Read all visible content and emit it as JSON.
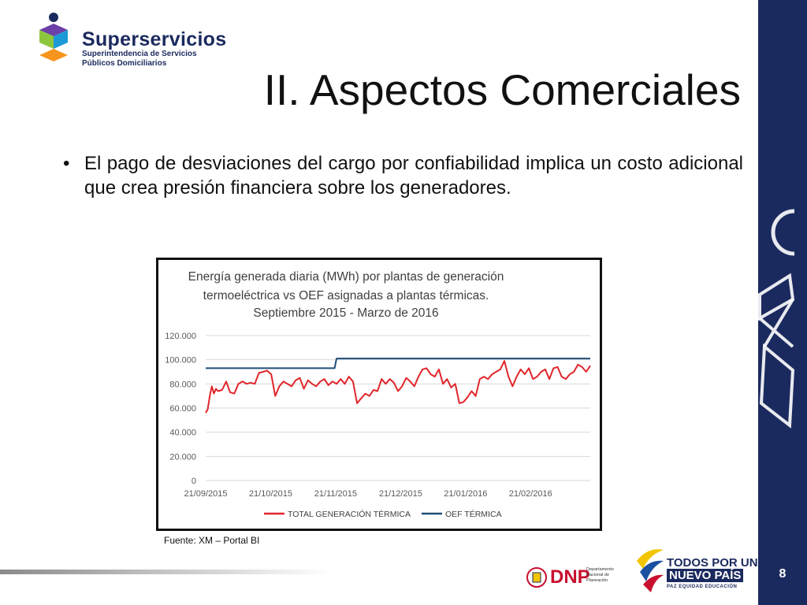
{
  "logo": {
    "name": "Superservicios",
    "subtitle_line1": "Superintendencia de Servicios",
    "subtitle_line2": "Públicos Domiciliarios"
  },
  "slide": {
    "title": "II. Aspectos Comerciales",
    "bullet_symbol": "•",
    "bullet_text": "El pago de desviaciones del cargo por confiabilidad implica un costo adicional que crea presión financiera sobre los generadores.",
    "source": "Fuente: XM – Portal BI",
    "page_number": "8"
  },
  "footer": {
    "dnp_text": "DNP",
    "dnp_sub": "Departamento Nacional de Planeación",
    "tpnp_line1": "TODOS POR UN",
    "tpnp_line2": "NUEVO PAÍS",
    "tpnp_line3": "PAZ  EQUIDAD  EDUCACIÓN"
  },
  "colors": {
    "sidebar": "#1b2a5e",
    "generation_series": "#e0262b",
    "oef_series": "#1f4e79",
    "gridline": "#d9d9d9"
  },
  "chart_data": {
    "type": "line",
    "title_lines": [
      "Energía generada diaria (MWh) por plantas de generación",
      "termoeléctrica vs OEF asignadas a plantas térmicas.",
      "Septiembre 2015 - Marzo de 2016"
    ],
    "x_tick_labels": [
      "21/09/2015",
      "21/10/2015",
      "21/11/2015",
      "21/12/2015",
      "21/01/2016",
      "21/02/2016"
    ],
    "x_range_days": [
      0,
      188
    ],
    "ylim": [
      0,
      120000
    ],
    "y_tick_labels": [
      "0",
      "20.000",
      "40.000",
      "60.000",
      "80.000",
      "100.000",
      "120.000"
    ],
    "y_ticks": [
      0,
      20000,
      40000,
      60000,
      80000,
      100000,
      120000
    ],
    "grid": true,
    "legend_position": "bottom",
    "series": [
      {
        "name": "TOTAL GENERACIÓN TÉRMICA",
        "color": "#e0262b",
        "points": [
          [
            0,
            56000
          ],
          [
            1,
            59000
          ],
          [
            2,
            70000
          ],
          [
            3,
            78000
          ],
          [
            4,
            72000
          ],
          [
            5,
            76000
          ],
          [
            6,
            74000
          ],
          [
            8,
            75000
          ],
          [
            10,
            82000
          ],
          [
            12,
            73000
          ],
          [
            14,
            72000
          ],
          [
            16,
            80000
          ],
          [
            18,
            82000
          ],
          [
            20,
            80000
          ],
          [
            22,
            81000
          ],
          [
            24,
            80000
          ],
          [
            26,
            89000
          ],
          [
            28,
            90000
          ],
          [
            30,
            91000
          ],
          [
            32,
            88000
          ],
          [
            34,
            70000
          ],
          [
            36,
            78000
          ],
          [
            38,
            82000
          ],
          [
            40,
            80000
          ],
          [
            42,
            78000
          ],
          [
            44,
            83000
          ],
          [
            46,
            85000
          ],
          [
            48,
            76000
          ],
          [
            50,
            83000
          ],
          [
            52,
            80000
          ],
          [
            54,
            78000
          ],
          [
            56,
            82000
          ],
          [
            58,
            84000
          ],
          [
            60,
            79000
          ],
          [
            62,
            82000
          ],
          [
            64,
            80000
          ],
          [
            66,
            84000
          ],
          [
            68,
            80000
          ],
          [
            70,
            86000
          ],
          [
            72,
            82000
          ],
          [
            74,
            64000
          ],
          [
            76,
            68000
          ],
          [
            78,
            72000
          ],
          [
            80,
            70000
          ],
          [
            82,
            75000
          ],
          [
            84,
            74000
          ],
          [
            86,
            84000
          ],
          [
            88,
            80000
          ],
          [
            90,
            84000
          ],
          [
            92,
            81000
          ],
          [
            94,
            74000
          ],
          [
            96,
            78000
          ],
          [
            98,
            85000
          ],
          [
            100,
            82000
          ],
          [
            102,
            78000
          ],
          [
            104,
            86000
          ],
          [
            106,
            92000
          ],
          [
            108,
            93000
          ],
          [
            110,
            88000
          ],
          [
            112,
            86000
          ],
          [
            114,
            92000
          ],
          [
            116,
            80000
          ],
          [
            118,
            84000
          ],
          [
            120,
            77000
          ],
          [
            122,
            80000
          ],
          [
            124,
            64000
          ],
          [
            126,
            65000
          ],
          [
            128,
            69000
          ],
          [
            130,
            74000
          ],
          [
            132,
            70000
          ],
          [
            134,
            84000
          ],
          [
            136,
            86000
          ],
          [
            138,
            84000
          ],
          [
            140,
            88000
          ],
          [
            142,
            90000
          ],
          [
            144,
            92000
          ],
          [
            146,
            99000
          ],
          [
            148,
            86000
          ],
          [
            150,
            78000
          ],
          [
            152,
            86000
          ],
          [
            154,
            92000
          ],
          [
            156,
            88000
          ],
          [
            158,
            93000
          ],
          [
            160,
            84000
          ],
          [
            162,
            86000
          ],
          [
            164,
            90000
          ],
          [
            166,
            92000
          ],
          [
            168,
            84000
          ],
          [
            170,
            93000
          ],
          [
            172,
            94000
          ],
          [
            174,
            86000
          ],
          [
            176,
            84000
          ],
          [
            178,
            88000
          ],
          [
            180,
            90000
          ],
          [
            182,
            96000
          ],
          [
            184,
            94000
          ],
          [
            186,
            90000
          ],
          [
            188,
            95000
          ]
        ]
      },
      {
        "name": "OEF TÉRMICA",
        "color": "#1f4e79",
        "points": [
          [
            0,
            93000
          ],
          [
            63,
            93000
          ],
          [
            64,
            101000
          ],
          [
            188,
            101000
          ]
        ]
      }
    ]
  }
}
